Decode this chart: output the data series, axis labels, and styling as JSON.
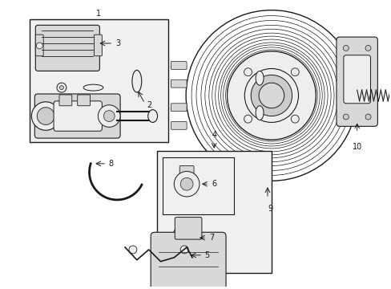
{
  "background_color": "#ffffff",
  "line_color": "#1a1a1a",
  "fig_width": 4.89,
  "fig_height": 3.6,
  "dpi": 100,
  "fill_gray": "#d8d8d8",
  "fill_light": "#eeeeee",
  "fill_mid": "#cccccc"
}
